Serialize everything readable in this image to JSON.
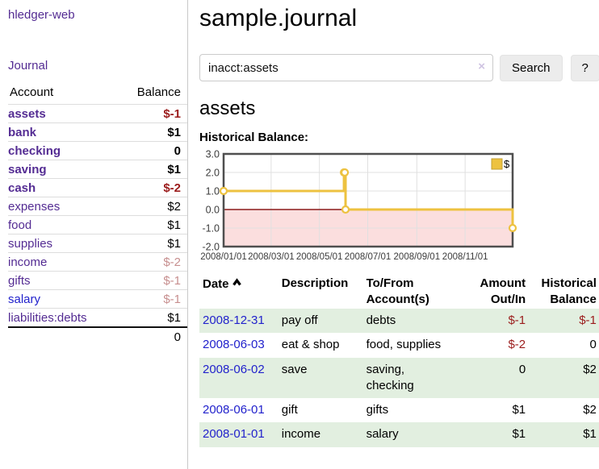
{
  "sidebar": {
    "app_title": "hledger-web",
    "nav": {
      "journal_label": "Journal"
    },
    "accounts_table": {
      "headers": {
        "account": "Account",
        "balance": "Balance"
      },
      "rows": [
        {
          "name": "assets",
          "balance": "$-1",
          "indent": 1,
          "bold": true,
          "balance_style": "neg-strong"
        },
        {
          "name": "bank",
          "balance": "$1",
          "indent": 2,
          "bold": true,
          "balance_style": ""
        },
        {
          "name": "checking",
          "balance": "0",
          "indent": 3,
          "bold": true,
          "balance_style": ""
        },
        {
          "name": "saving",
          "balance": "$1",
          "indent": 3,
          "bold": true,
          "balance_style": ""
        },
        {
          "name": "cash",
          "balance": "$-2",
          "indent": 2,
          "bold": true,
          "balance_style": "neg-strong"
        },
        {
          "name": "expenses",
          "balance": "$2",
          "indent": 1,
          "bold": false,
          "balance_style": ""
        },
        {
          "name": "food",
          "balance": "$1",
          "indent": 2,
          "bold": false,
          "balance_style": ""
        },
        {
          "name": "supplies",
          "balance": "$1",
          "indent": 2,
          "bold": false,
          "balance_style": ""
        },
        {
          "name": "income",
          "balance": "$-2",
          "indent": 1,
          "bold": false,
          "balance_style": "neg-muted"
        },
        {
          "name": "gifts",
          "balance": "$-1",
          "indent": 2,
          "bold": false,
          "balance_style": "neg-muted"
        },
        {
          "name": "salary",
          "balance": "$-1",
          "indent": 2,
          "bold": false,
          "balance_style": "neg-muted",
          "link_style": "blue"
        },
        {
          "name": "liabilities:debts",
          "balance": "$1",
          "indent": 1,
          "bold": false,
          "balance_style": ""
        }
      ],
      "total": "0"
    },
    "colors": {
      "link_purple": "#542c93",
      "link_blue": "#2222cc",
      "negative_strong": "#9b1c1c",
      "negative_muted": "#c78f8f"
    }
  },
  "main": {
    "title": "sample.journal",
    "search": {
      "value": "inacct:assets",
      "clear_icon": "×",
      "button_label": "Search",
      "help_label": "?"
    },
    "account_heading": "assets",
    "chart_label": "Historical Balance:"
  },
  "chart_data": {
    "type": "line",
    "step": true,
    "series": [
      {
        "name": "$",
        "color": "#edc240",
        "points": [
          [
            "2008-01-01",
            1
          ],
          [
            "2008-06-01",
            2
          ],
          [
            "2008-06-02",
            2
          ],
          [
            "2008-06-03",
            0
          ],
          [
            "2008-12-31",
            -1
          ]
        ]
      }
    ],
    "x_ticks": [
      "2008/01/01",
      "2008/03/01",
      "2008/05/01",
      "2008/07/01",
      "2008/09/01",
      "2008/11/01"
    ],
    "y_ticks": [
      3.0,
      2.0,
      1.0,
      0.0,
      -1.0,
      -2.0
    ],
    "xlim": [
      "2008-01-01",
      "2008-12-31"
    ],
    "ylim": [
      -2,
      3
    ],
    "legend": {
      "label": "$",
      "position": "top-right"
    },
    "grid": true,
    "negative_region_color": "#fbdede",
    "zero_line_color": "#8b1a1a",
    "border_color": "#4f4f4f",
    "gridline_color": "#e0e0e0",
    "tick_color": "#3c3c3c"
  },
  "transactions": {
    "headers": {
      "date": "Date",
      "description": "Description",
      "accounts": "To/From Account(s)",
      "amount": "Amount Out/In",
      "balance": "Historical Balance"
    },
    "sort": {
      "column": "date",
      "direction": "ascending",
      "icon": "chevron-up"
    },
    "row_highlight_color": "#e2efe0",
    "rows": [
      {
        "date": "2008-12-31",
        "description": "pay off",
        "accounts": "debts",
        "amount": "$-1",
        "balance": "$-1",
        "amount_negative": true,
        "balance_negative": true
      },
      {
        "date": "2008-06-03",
        "description": "eat & shop",
        "accounts": "food, supplies",
        "amount": "$-2",
        "balance": "0",
        "amount_negative": true,
        "balance_negative": false
      },
      {
        "date": "2008-06-02",
        "description": "save",
        "accounts": "saving, checking",
        "amount": "0",
        "balance": "$2",
        "amount_negative": false,
        "balance_negative": false
      },
      {
        "date": "2008-06-01",
        "description": "gift",
        "accounts": "gifts",
        "amount": "$1",
        "balance": "$2",
        "amount_negative": false,
        "balance_negative": false
      },
      {
        "date": "2008-01-01",
        "description": "income",
        "accounts": "salary",
        "amount": "$1",
        "balance": "$1",
        "amount_negative": false,
        "balance_negative": false
      }
    ]
  }
}
